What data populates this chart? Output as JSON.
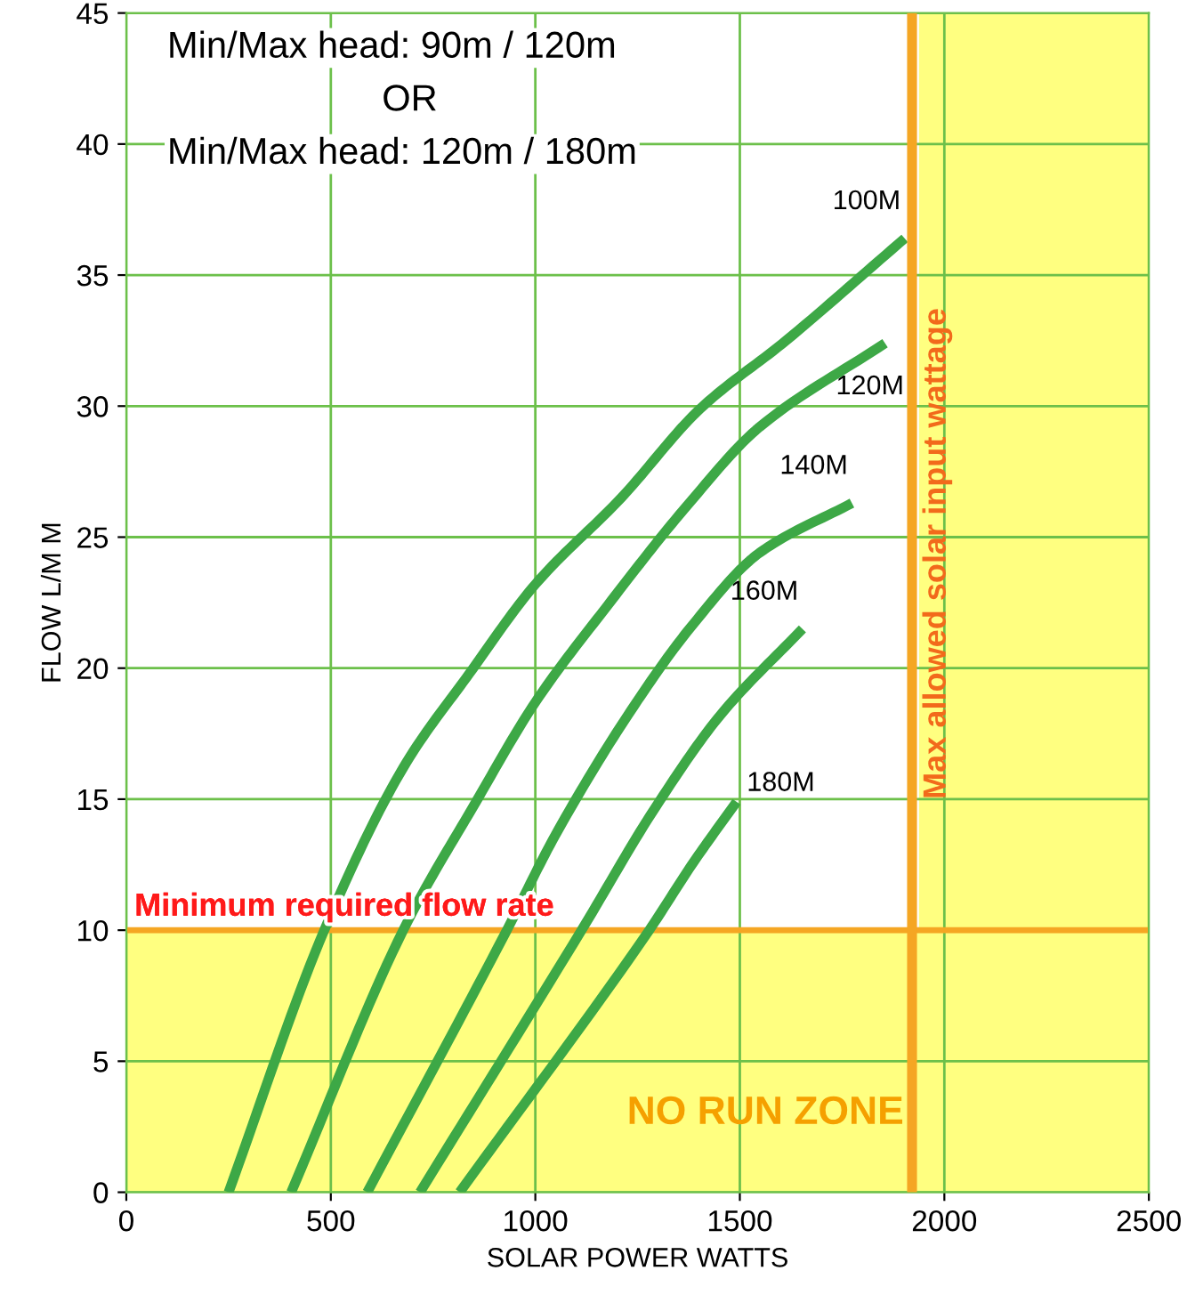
{
  "chart_data": {
    "type": "line",
    "xlabel": "SOLAR POWER WATTS",
    "ylabel": "FLOW L/M M",
    "xlim": [
      0,
      2500
    ],
    "ylim": [
      0,
      45
    ],
    "xticks": [
      0,
      500,
      1000,
      1500,
      2000,
      2500
    ],
    "yticks": [
      0,
      5,
      10,
      15,
      20,
      25,
      30,
      35,
      40,
      45
    ],
    "grid": true,
    "series": [
      {
        "name": "100M",
        "color": "#3da846",
        "x": [
          250,
          484,
          677,
          839,
          1000,
          1210,
          1403,
          1613,
          1903
        ],
        "values": [
          0,
          10,
          16.2,
          19.8,
          23.2,
          26.5,
          29.9,
          32.5,
          36.4
        ]
      },
      {
        "name": "120M",
        "color": "#3da846",
        "x": [
          403,
          677,
          855,
          1000,
          1177,
          1371,
          1548,
          1855
        ],
        "values": [
          0,
          10,
          14.9,
          18.7,
          22.4,
          26.2,
          29.2,
          32.4
        ]
      },
      {
        "name": "140M",
        "color": "#3da846",
        "x": [
          589,
          927,
          1048,
          1226,
          1387,
          1548,
          1774
        ],
        "values": [
          0,
          9.9,
          13.6,
          18.2,
          21.7,
          24.4,
          26.3
        ]
      },
      {
        "name": "160M",
        "color": "#3da846",
        "x": [
          718,
          1113,
          1290,
          1452,
          1653
        ],
        "values": [
          0,
          10,
          14.6,
          18.2,
          21.5
        ]
      },
      {
        "name": "180M",
        "color": "#3da846",
        "x": [
          815,
          1274,
          1387,
          1492
        ],
        "values": [
          0,
          9.9,
          12.6,
          14.9
        ]
      }
    ],
    "bands": [
      {
        "axis": "y",
        "from": 0,
        "to": 10,
        "label": "NO RUN ZONE",
        "color": "#ffff80"
      },
      {
        "axis": "x",
        "from": 1938,
        "to": 2500,
        "color": "#ffff80"
      }
    ],
    "ref_lines": [
      {
        "axis": "y",
        "value": 10,
        "label": "Minimum required flow rate",
        "color": "#f5a623"
      },
      {
        "axis": "x",
        "value": 1921,
        "label": "Max allowed solar input wattage",
        "color": "#f5a623"
      }
    ],
    "annotations": [
      "Min/Max head: 90m / 120m",
      "OR",
      "Min/Max head: 120m / 180m"
    ]
  }
}
